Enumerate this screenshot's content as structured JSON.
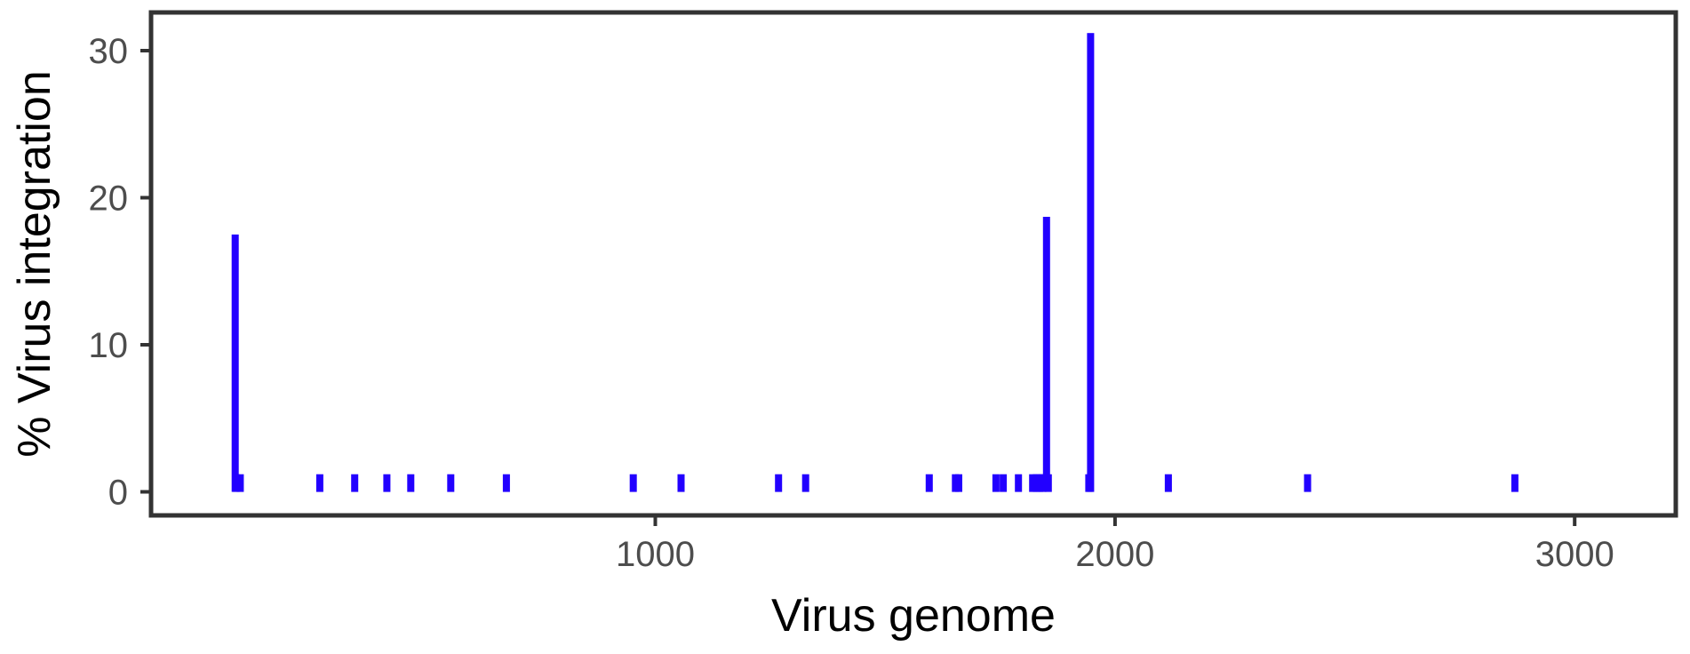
{
  "chart_data": {
    "type": "bar",
    "xlabel": "Virus genome",
    "ylabel": "% Virus integration",
    "xlim": [
      -97,
      3220
    ],
    "ylim": [
      -1.6,
      32.6
    ],
    "x_ticks": [
      1000,
      2000,
      3000
    ],
    "y_ticks": [
      0,
      10,
      20,
      30
    ],
    "grid": false,
    "bar_color": "#2200ff",
    "series": [
      {
        "x": [
          86,
          88,
          97,
          270,
          346,
          416,
          468,
          555,
          676,
          952,
          1056,
          1268,
          1327,
          1596,
          1653,
          1660,
          1741,
          1757,
          1790,
          1821,
          1829,
          1836,
          1843,
          1851,
          1855,
          1943,
          1947,
          2116,
          2419,
          2870
        ],
        "values": [
          17.5,
          1.2,
          1.2,
          1.2,
          1.2,
          1.2,
          1.2,
          1.2,
          1.2,
          1.2,
          1.2,
          1.2,
          1.2,
          1.2,
          1.2,
          1.2,
          1.2,
          1.2,
          1.2,
          1.2,
          1.2,
          1.2,
          1.2,
          18.7,
          1.2,
          1.2,
          31.2,
          1.2,
          1.2,
          1.2
        ]
      }
    ]
  }
}
